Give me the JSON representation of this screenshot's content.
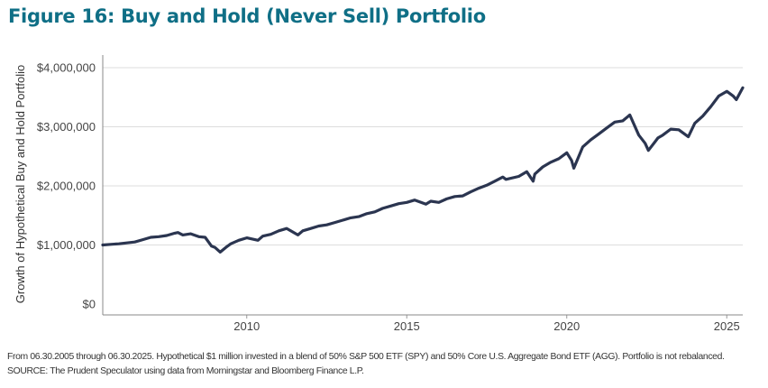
{
  "title": "Figure 16: Buy and Hold (Never Sell) Portfolio",
  "footnote": "From 06.30.2005 through 06.30.2025. Hypothetical $1 million invested in a blend of 50% S&P 500 ETF (SPY) and 50% Core U.S. Aggregate Bond ETF (AGG). Portfolio is not rebalanced. SOURCE: The Prudent Speculator using data from Morningstar and Bloomberg Finance L.P.",
  "colors": {
    "title": "#0f6f86",
    "line": "#2b3550",
    "grid": "#dddddd",
    "axis": "#888888"
  },
  "chart_data": {
    "type": "line",
    "title": "Figure 16: Buy and Hold (Never Sell) Portfolio",
    "xlabel": "",
    "ylabel": "Growth of Hypothetical Buy and Hold Portfolio",
    "xlim": [
      2005.5,
      2025.5
    ],
    "ylim": [
      0,
      4000000
    ],
    "grid": true,
    "y_ticks": [
      0,
      1000000,
      2000000,
      3000000,
      4000000
    ],
    "y_tick_labels": [
      "$0",
      "$1,000,000",
      "$2,000,000",
      "$3,000,000",
      "$4,000,000"
    ],
    "x_ticks": [
      2010,
      2015,
      2020,
      2025
    ],
    "x_tick_labels": [
      "2010",
      "2015",
      "2020",
      "2025"
    ],
    "series": [
      {
        "name": "Buy and Hold Portfolio",
        "x": [
          2005.5,
          2005.75,
          2006.0,
          2006.5,
          2006.75,
          2007.0,
          2007.25,
          2007.5,
          2007.75,
          2007.85,
          2008.0,
          2008.25,
          2008.5,
          2008.7,
          2008.9,
          2009.0,
          2009.17,
          2009.35,
          2009.5,
          2009.75,
          2010.0,
          2010.35,
          2010.5,
          2010.75,
          2011.0,
          2011.25,
          2011.6,
          2011.75,
          2012.0,
          2012.25,
          2012.5,
          2012.75,
          2013.0,
          2013.25,
          2013.5,
          2013.75,
          2014.0,
          2014.25,
          2014.5,
          2014.75,
          2015.0,
          2015.25,
          2015.6,
          2015.75,
          2016.0,
          2016.25,
          2016.5,
          2016.75,
          2017.0,
          2017.25,
          2017.5,
          2017.75,
          2018.0,
          2018.1,
          2018.5,
          2018.75,
          2018.95,
          2019.0,
          2019.25,
          2019.5,
          2019.75,
          2020.0,
          2020.15,
          2020.22,
          2020.5,
          2020.75,
          2021.0,
          2021.25,
          2021.5,
          2021.75,
          2021.97,
          2022.25,
          2022.45,
          2022.55,
          2022.75,
          2022.85,
          2023.0,
          2023.25,
          2023.5,
          2023.8,
          2024.0,
          2024.25,
          2024.5,
          2024.75,
          2025.0,
          2025.2,
          2025.3,
          2025.5
        ],
        "values": [
          1000000,
          1010000,
          1020000,
          1050000,
          1090000,
          1130000,
          1140000,
          1160000,
          1200000,
          1210000,
          1170000,
          1190000,
          1140000,
          1130000,
          980000,
          960000,
          880000,
          960000,
          1020000,
          1080000,
          1120000,
          1080000,
          1150000,
          1180000,
          1240000,
          1280000,
          1170000,
          1240000,
          1280000,
          1320000,
          1340000,
          1380000,
          1420000,
          1460000,
          1480000,
          1530000,
          1560000,
          1620000,
          1660000,
          1700000,
          1720000,
          1760000,
          1690000,
          1740000,
          1720000,
          1780000,
          1820000,
          1830000,
          1900000,
          1960000,
          2010000,
          2080000,
          2150000,
          2110000,
          2160000,
          2240000,
          2080000,
          2200000,
          2320000,
          2400000,
          2460000,
          2560000,
          2430000,
          2300000,
          2660000,
          2780000,
          2880000,
          2980000,
          3080000,
          3100000,
          3200000,
          2860000,
          2720000,
          2600000,
          2740000,
          2810000,
          2860000,
          2960000,
          2950000,
          2830000,
          3060000,
          3180000,
          3340000,
          3520000,
          3600000,
          3520000,
          3460000,
          3660000
        ]
      }
    ]
  }
}
